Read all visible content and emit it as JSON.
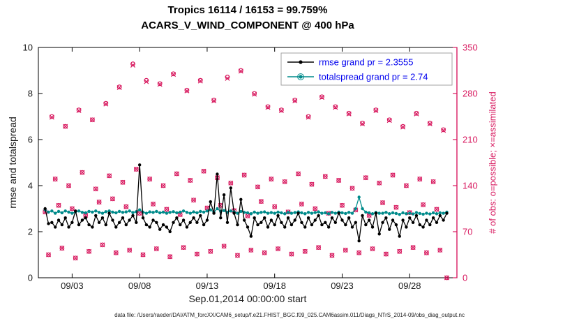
{
  "title_line1": "Tropics 16114 / 16153 = 99.759%",
  "title_line2": "ACARS_V_WIND_COMPONENT @ 400 hPa",
  "xlabel": "Sep.01,2014 00:00:00 start",
  "footer": "data file: /Users/raeder/DAI/ATM_forcXX/CAM6_setup/f.e21.FHIST_BGC.f09_025.CAM6assim.011/Diags_NTrS_2014-09/obs_diag_output.nc",
  "colors": {
    "obs": "#d81b60",
    "rmse": "#000000",
    "totalspread": "#008b8b",
    "legend_text": "#0000ee",
    "axis": "#000000"
  },
  "legend": {
    "items": [
      {
        "label": "rmse grand pr = 2.3555",
        "color": "#000000",
        "grand_pr": 2.3555
      },
      {
        "label": "totalspread grand pr = 2.74",
        "color": "#008b8b",
        "grand_pr": 2.74
      }
    ]
  },
  "chart_data": {
    "type": "line",
    "title": "Tropics 16114 / 16153 = 99.759%",
    "subtitle": "ACARS_V_WIND_COMPONENT @ 400 hPa",
    "xlabel": "Sep.01,2014 00:00:00 start",
    "grid": false,
    "legend_position": "top-right-inside",
    "x_days_start": 0.0,
    "x_days_step": 0.25,
    "x_axis": {
      "range_days": [
        -0.5,
        30.5
      ],
      "ticks": [
        {
          "day": 2,
          "label": "09/03"
        },
        {
          "day": 7,
          "label": "09/08"
        },
        {
          "day": 12,
          "label": "09/13"
        },
        {
          "day": 17,
          "label": "09/18"
        },
        {
          "day": 22,
          "label": "09/23"
        },
        {
          "day": 27,
          "label": "09/28"
        }
      ]
    },
    "y_left": {
      "label": "rmse and totalspread",
      "range": [
        0,
        10
      ],
      "ticks": [
        0,
        2,
        4,
        6,
        8,
        10
      ]
    },
    "y_right": {
      "label": "# of obs: o=possible; ×=assimilated",
      "range": [
        0,
        350
      ],
      "ticks": [
        0,
        70,
        140,
        210,
        280,
        350
      ],
      "color": "#d81b60"
    },
    "series": [
      {
        "name": "rmse",
        "axis": "left",
        "color": "#000000",
        "marker": "filled-circle",
        "grand_pr": 2.3555,
        "values": [
          3.0,
          2.35,
          2.4,
          2.2,
          2.5,
          2.3,
          2.6,
          2.2,
          2.4,
          2.9,
          2.3,
          2.5,
          2.6,
          2.3,
          2.2,
          2.7,
          2.4,
          2.6,
          2.3,
          2.8,
          2.5,
          2.2,
          2.4,
          2.6,
          2.3,
          2.5,
          2.7,
          2.4,
          4.9,
          2.6,
          2.3,
          2.2,
          2.5,
          2.4,
          2.1,
          2.3,
          2.2,
          2.0,
          2.4,
          2.6,
          2.3,
          2.5,
          2.2,
          2.4,
          2.6,
          2.4,
          2.7,
          2.3,
          2.5,
          3.3,
          2.8,
          4.5,
          2.6,
          3.6,
          2.4,
          3.9,
          2.8,
          2.3,
          3.4,
          2.5,
          2.2,
          1.8,
          2.6,
          2.3,
          2.4,
          2.6,
          2.2,
          2.5,
          2.3,
          2.7,
          2.4,
          2.2,
          2.6,
          2.3,
          2.5,
          2.8,
          2.4,
          2.2,
          2.6,
          2.3,
          2.5,
          2.7,
          2.3,
          2.4,
          2.2,
          2.6,
          2.4,
          2.8,
          2.5,
          2.3,
          2.6,
          2.2,
          2.4,
          1.6,
          2.7,
          2.3,
          2.5,
          2.2,
          2.8,
          1.9,
          2.4,
          2.6,
          2.1,
          2.5,
          2.3,
          1.8,
          2.5,
          2.2,
          2.6,
          2.4,
          2.7,
          2.3,
          2.2,
          2.5,
          2.3,
          2.6,
          2.4,
          2.7,
          2.5,
          2.8
        ]
      },
      {
        "name": "totalspread",
        "axis": "left",
        "color": "#008b8b",
        "marker": "filled-circle",
        "grand_pr": 2.74,
        "values": [
          2.95,
          2.85,
          2.9,
          2.8,
          2.88,
          2.82,
          2.9,
          2.85,
          2.8,
          2.86,
          2.9,
          2.84,
          2.82,
          2.88,
          2.85,
          2.9,
          2.84,
          2.8,
          2.87,
          2.9,
          2.85,
          2.82,
          2.88,
          2.84,
          2.86,
          2.9,
          2.83,
          2.87,
          2.95,
          2.85,
          2.8,
          2.86,
          2.84,
          2.88,
          2.82,
          2.85,
          2.8,
          2.84,
          2.87,
          2.82,
          2.85,
          2.9,
          2.84,
          2.8,
          2.86,
          2.82,
          2.88,
          2.85,
          2.9,
          2.95,
          2.85,
          3.0,
          2.88,
          2.92,
          2.84,
          2.9,
          2.86,
          2.8,
          2.88,
          2.84,
          2.82,
          2.78,
          2.85,
          2.8,
          2.84,
          2.86,
          2.8,
          2.83,
          2.8,
          2.85,
          2.82,
          2.78,
          2.84,
          2.8,
          2.83,
          2.86,
          2.82,
          2.78,
          2.84,
          2.8,
          2.83,
          2.86,
          2.8,
          2.82,
          2.78,
          2.84,
          2.8,
          2.85,
          2.82,
          2.79,
          2.84,
          2.8,
          3.0,
          3.5,
          3.0,
          2.85,
          2.82,
          2.78,
          2.84,
          2.8,
          2.8,
          2.84,
          2.78,
          2.82,
          2.79,
          2.75,
          2.82,
          2.78,
          2.8,
          2.77,
          2.83,
          2.79,
          2.76,
          2.8,
          2.77,
          2.82,
          2.78,
          2.82,
          2.8,
          2.85
        ]
      },
      {
        "name": "obs_possible",
        "axis": "right",
        "color": "#d81b60",
        "marker": "o",
        "total": 16153,
        "values": [
          100,
          35,
          245,
          150,
          110,
          45,
          230,
          140,
          105,
          30,
          255,
          160,
          95,
          40,
          240,
          135,
          115,
          50,
          265,
          155,
          120,
          38,
          290,
          145,
          108,
          42,
          325,
          165,
          98,
          35,
          300,
          150,
          112,
          44,
          295,
          140,
          104,
          32,
          310,
          158,
          96,
          46,
          285,
          148,
          118,
          36,
          300,
          162,
          106,
          40,
          270,
          152,
          110,
          48,
          305,
          144,
          102,
          34,
          315,
          156,
          94,
          42,
          280,
          138,
          116,
          38,
          260,
          150,
          108,
          44,
          255,
          146,
          100,
          36,
          270,
          158,
          112,
          40,
          245,
          142,
          105,
          46,
          275,
          154,
          98,
          34,
          260,
          148,
          110,
          42,
          250,
          136,
          103,
          38,
          235,
          152,
          95,
          44,
          255,
          144,
          114,
          36,
          240,
          156,
          107,
          40,
          230,
          140,
          99,
          46,
          250,
          150,
          111,
          38,
          235,
          146,
          104,
          42,
          225,
          0
        ]
      },
      {
        "name": "obs_assimilated",
        "axis": "right",
        "color": "#d81b60",
        "marker": "x",
        "total": 16114,
        "values": [
          100,
          35,
          244,
          150,
          110,
          45,
          230,
          140,
          105,
          30,
          254,
          160,
          95,
          40,
          240,
          135,
          115,
          50,
          264,
          155,
          120,
          38,
          289,
          145,
          108,
          42,
          323,
          165,
          98,
          35,
          298,
          150,
          112,
          44,
          294,
          140,
          104,
          32,
          309,
          158,
          96,
          46,
          284,
          148,
          118,
          36,
          299,
          162,
          106,
          40,
          269,
          152,
          110,
          48,
          303,
          144,
          102,
          34,
          314,
          156,
          94,
          42,
          279,
          138,
          116,
          38,
          259,
          150,
          108,
          44,
          254,
          146,
          100,
          36,
          269,
          158,
          112,
          40,
          244,
          142,
          105,
          46,
          274,
          154,
          98,
          34,
          259,
          148,
          110,
          42,
          249,
          136,
          103,
          38,
          234,
          152,
          95,
          44,
          254,
          144,
          114,
          36,
          239,
          156,
          107,
          40,
          229,
          140,
          99,
          46,
          249,
          150,
          111,
          38,
          234,
          146,
          104,
          42,
          224,
          0
        ]
      }
    ]
  }
}
